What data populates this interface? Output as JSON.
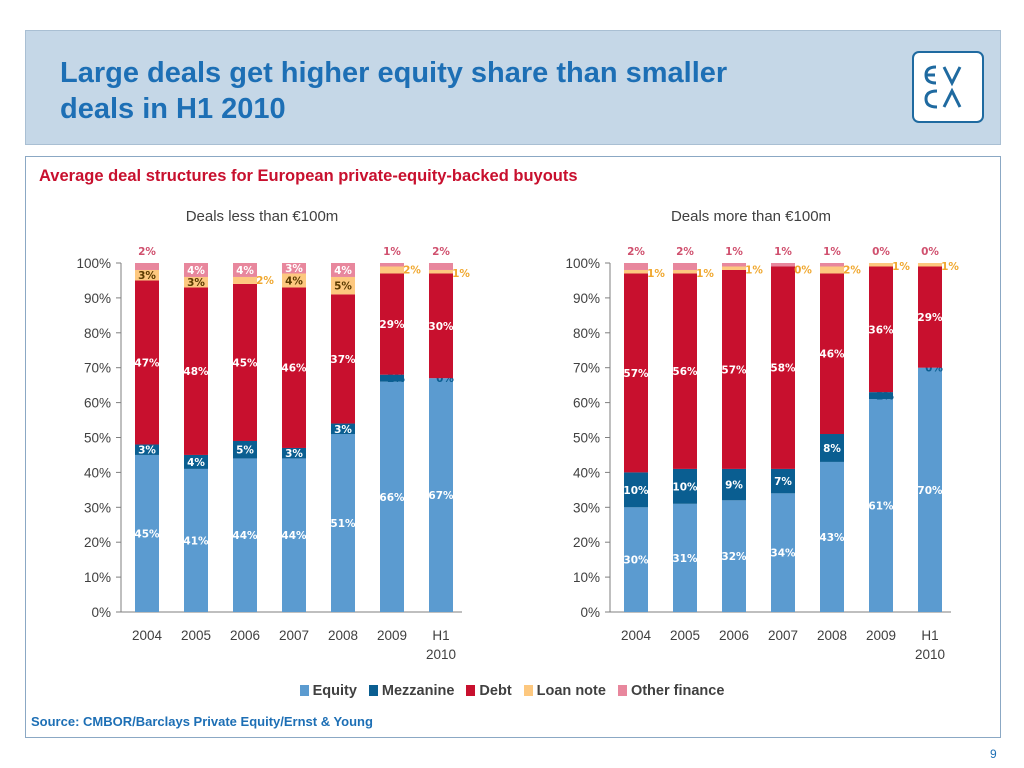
{
  "header": {
    "title_line1": "Large deals get higher equity share than smaller",
    "title_line2": "deals in H1 2010"
  },
  "logo": {
    "top_text": "EV",
    "bottom_text": "CA"
  },
  "subtitle": "Average deal structures for European private-equity-backed buyouts",
  "source": "Source: CMBOR/Barclays Private Equity/Ernst & Young",
  "page_number": "9",
  "colors": {
    "equity": "#5b9bd0",
    "mezzanine": "#0a5e91",
    "debt": "#c8102e",
    "loan_note": "#fdc87f",
    "other_finance": "#e8879d",
    "title_blue": "#1d6fb5"
  },
  "chart_data": [
    {
      "type": "bar",
      "stacked": true,
      "title": "Deals less than €100m",
      "categories": [
        "2004",
        "2005",
        "2006",
        "2007",
        "2008",
        "2009",
        "H1\n2010"
      ],
      "ylim": [
        0,
        100
      ],
      "yticks": [
        "0%",
        "10%",
        "20%",
        "30%",
        "40%",
        "50%",
        "60%",
        "70%",
        "80%",
        "90%",
        "100%"
      ],
      "grid": false,
      "series": [
        {
          "name": "Equity",
          "values": [
            45,
            41,
            44,
            44,
            51,
            66,
            67
          ],
          "labels": [
            "45%",
            "41%",
            "44%",
            "44%",
            "51%",
            "66%",
            "67%"
          ]
        },
        {
          "name": "Mezzanine",
          "values": [
            3,
            4,
            5,
            3,
            3,
            2,
            0
          ],
          "labels": [
            "3%",
            "4%",
            "5%",
            "3%",
            "3%",
            "2%",
            "0%"
          ]
        },
        {
          "name": "Debt",
          "values": [
            47,
            48,
            45,
            46,
            37,
            29,
            30
          ],
          "labels": [
            "47%",
            "48%",
            "45%",
            "46%",
            "37%",
            "29%",
            "30%"
          ]
        },
        {
          "name": "Loan note",
          "values": [
            3,
            3,
            2,
            4,
            5,
            2,
            1
          ],
          "labels": [
            "3%",
            "3%",
            "2%",
            "4%",
            "5%",
            "2%",
            "1%"
          ]
        },
        {
          "name": "Other finance",
          "values": [
            2,
            4,
            4,
            3,
            4,
            1,
            2
          ],
          "labels": [
            "2%",
            "4%",
            "4%",
            "3%",
            "4%",
            "1%",
            "2%"
          ]
        }
      ]
    },
    {
      "type": "bar",
      "stacked": true,
      "title": "Deals more than €100m",
      "categories": [
        "2004",
        "2005",
        "2006",
        "2007",
        "2008",
        "2009",
        "H1\n2010"
      ],
      "ylim": [
        0,
        100
      ],
      "yticks": [
        "0%",
        "10%",
        "20%",
        "30%",
        "40%",
        "50%",
        "60%",
        "70%",
        "80%",
        "90%",
        "100%"
      ],
      "grid": false,
      "series": [
        {
          "name": "Equity",
          "values": [
            30,
            31,
            32,
            34,
            43,
            61,
            70
          ],
          "labels": [
            "30%",
            "31%",
            "32%",
            "34%",
            "43%",
            "61%",
            "70%"
          ]
        },
        {
          "name": "Mezzanine",
          "values": [
            10,
            10,
            9,
            7,
            8,
            2,
            0
          ],
          "labels": [
            "10%",
            "10%",
            "9%",
            "7%",
            "8%",
            "2%",
            "0%"
          ]
        },
        {
          "name": "Debt",
          "values": [
            57,
            56,
            57,
            58,
            46,
            36,
            29
          ],
          "labels": [
            "57%",
            "56%",
            "57%",
            "58%",
            "46%",
            "36%",
            "29%"
          ]
        },
        {
          "name": "Loan note",
          "values": [
            1,
            1,
            1,
            0,
            2,
            1,
            1
          ],
          "labels": [
            "1%",
            "1%",
            "1%",
            "0%",
            "2%",
            "1%",
            "1%"
          ]
        },
        {
          "name": "Other finance",
          "values": [
            2,
            2,
            1,
            1,
            1,
            0,
            0
          ],
          "labels": [
            "2%",
            "2%",
            "1%",
            "1%",
            "1%",
            "0%",
            "0%"
          ]
        }
      ]
    }
  ],
  "legend": [
    {
      "name": "Equity"
    },
    {
      "name": "Mezzanine"
    },
    {
      "name": "Debt"
    },
    {
      "name": "Loan note"
    },
    {
      "name": "Other finance"
    }
  ]
}
